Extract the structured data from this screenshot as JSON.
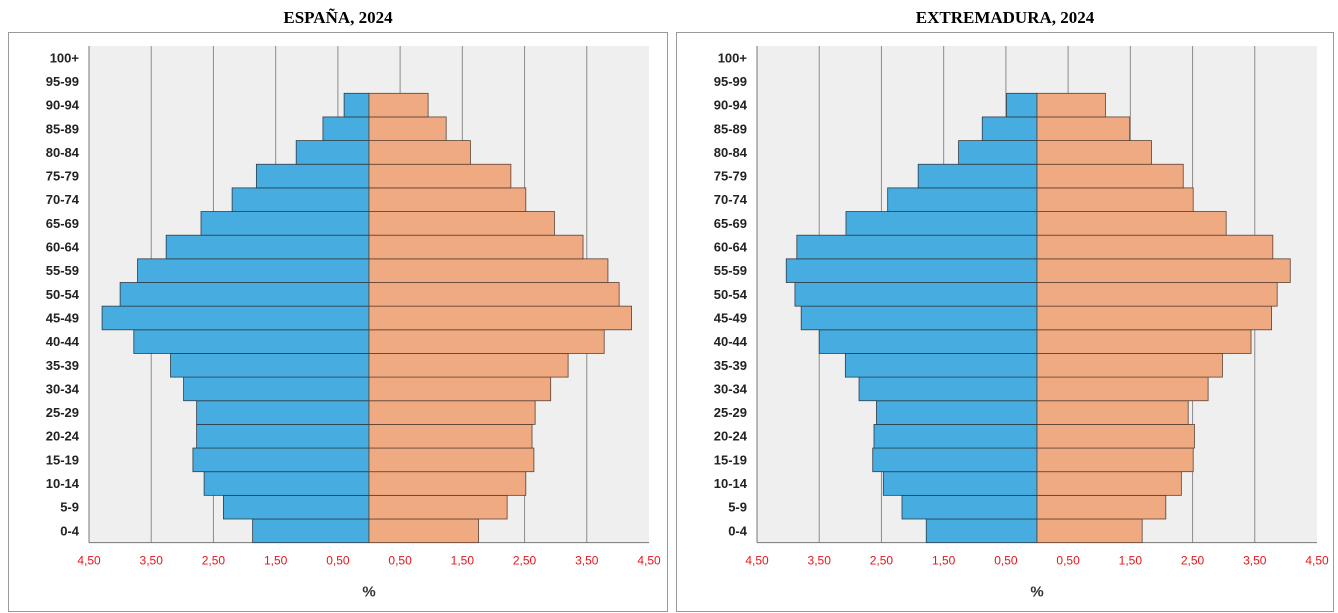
{
  "colors": {
    "male": "#47ade0",
    "female": "#f0aa82",
    "plot_bg": "#efefef",
    "grid": "#8c8c8c",
    "tick": "#e8141b"
  },
  "chart_data": [
    {
      "type": "bar",
      "title": "ESPAÑA, 2024",
      "xlabel": "%",
      "ylabel": "",
      "xlim": [
        -4.5,
        4.5
      ],
      "grid": true,
      "categories": [
        "0-4",
        "5-9",
        "10-14",
        "15-19",
        "20-24",
        "25-29",
        "30-34",
        "35-39",
        "40-44",
        "45-49",
        "50-54",
        "55-59",
        "60-64",
        "65-69",
        "70-74",
        "75-79",
        "80-84",
        "85-89",
        "90-94",
        "95-99",
        "100+"
      ],
      "tick_labels": [
        "4,50",
        "3,50",
        "2,50",
        "1,50",
        "0,50",
        "0,50",
        "1,50",
        "2,50",
        "3,50",
        "4,50"
      ],
      "series": [
        {
          "values": [
            1.87,
            2.34,
            2.65,
            2.83,
            2.77,
            2.77,
            2.98,
            3.19,
            3.78,
            4.29,
            4.0,
            3.72,
            3.26,
            2.7,
            2.2,
            1.81,
            1.17,
            0.74,
            0.4,
            0.0,
            0.0
          ]
        },
        {
          "values": [
            1.76,
            2.22,
            2.52,
            2.65,
            2.62,
            2.67,
            2.92,
            3.2,
            3.78,
            4.22,
            4.02,
            3.84,
            3.44,
            2.98,
            2.52,
            2.28,
            1.63,
            1.24,
            0.95,
            0.0,
            0.0
          ]
        }
      ]
    },
    {
      "type": "bar",
      "title": "EXTREMADURA, 2024",
      "xlabel": "%",
      "ylabel": "",
      "xlim": [
        -4.5,
        4.5
      ],
      "grid": true,
      "categories": [
        "0-4",
        "5-9",
        "10-14",
        "15-19",
        "20-24",
        "25-29",
        "30-34",
        "35-39",
        "40-44",
        "45-49",
        "50-54",
        "55-59",
        "60-64",
        "65-69",
        "70-74",
        "75-79",
        "80-84",
        "85-89",
        "90-94",
        "95-99",
        "100+"
      ],
      "tick_labels": [
        "4,50",
        "3,50",
        "2,50",
        "1,50",
        "0,50",
        "0,50",
        "1,50",
        "2,50",
        "3,50",
        "4,50"
      ],
      "series": [
        {
          "values": [
            1.78,
            2.17,
            2.47,
            2.64,
            2.62,
            2.58,
            2.86,
            3.08,
            3.5,
            3.79,
            3.89,
            4.03,
            3.86,
            3.07,
            2.4,
            1.91,
            1.26,
            0.88,
            0.49,
            0.0,
            0.0
          ]
        },
        {
          "values": [
            1.69,
            2.07,
            2.32,
            2.51,
            2.53,
            2.43,
            2.75,
            2.98,
            3.44,
            3.77,
            3.86,
            4.07,
            3.79,
            3.04,
            2.51,
            2.35,
            1.84,
            1.49,
            1.1,
            0.0,
            0.0
          ]
        }
      ]
    }
  ]
}
